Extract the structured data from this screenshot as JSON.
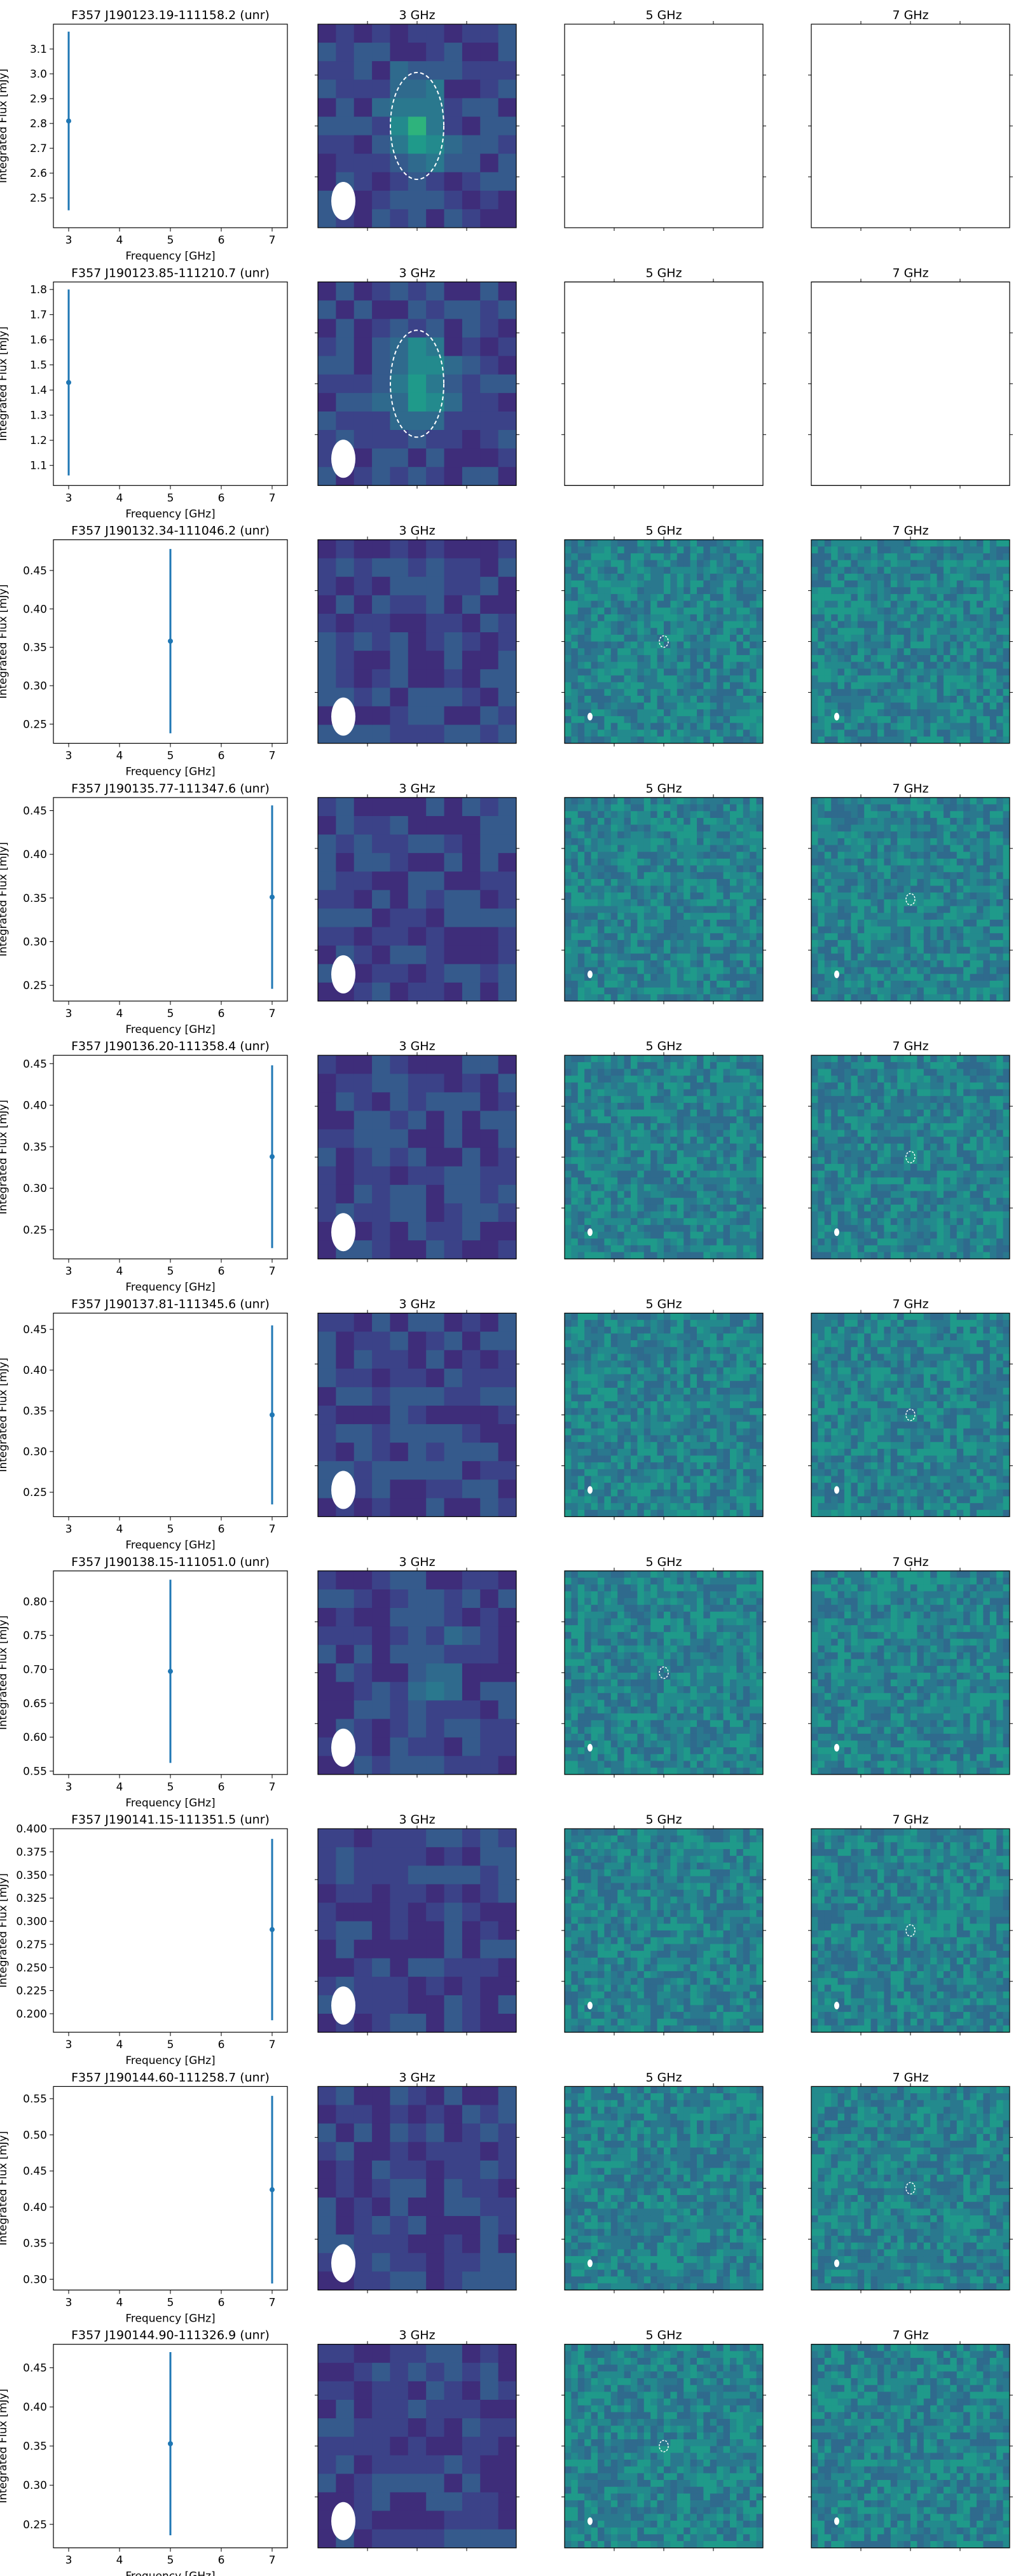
{
  "figure": {
    "panel_titles": [
      "3 GHz",
      "5 GHz",
      "7 GHz"
    ],
    "colors": {
      "series": "#1f77b4",
      "map_low": "#3b1a6b",
      "map_mid": "#2a788e",
      "map_high": "#44bf70"
    },
    "colormap": "viridis"
  },
  "chart_data": [
    {
      "type": "scatter",
      "title": "F357 J190123.19-111158.2 (unr)",
      "xlabel": "Frequency [GHz]",
      "ylabel": "Integrated Flux [mJy]",
      "xlim": [
        2.7,
        7.3
      ],
      "ylim": [
        2.38,
        3.2
      ],
      "xticks": [
        3,
        4,
        5,
        6,
        7
      ],
      "yticks": [
        2.5,
        2.6,
        2.7,
        2.8,
        2.9,
        3.0,
        3.1
      ],
      "points": [
        {
          "x": 3,
          "y": 2.81,
          "yerr_low": 0.36,
          "yerr_high": 0.36
        }
      ],
      "images": {
        "3 GHz": {
          "present": true,
          "source": "bright",
          "aperture": true
        },
        "5 GHz": {
          "present": false
        },
        "7 GHz": {
          "present": false
        }
      }
    },
    {
      "type": "scatter",
      "title": "F357 J190123.85-111210.7 (unr)",
      "xlabel": "Frequency [GHz]",
      "ylabel": "Integrated Flux [mJy]",
      "xlim": [
        2.7,
        7.3
      ],
      "ylim": [
        1.02,
        1.83
      ],
      "xticks": [
        3,
        4,
        5,
        6,
        7
      ],
      "yticks": [
        1.1,
        1.2,
        1.3,
        1.4,
        1.5,
        1.6,
        1.7,
        1.8
      ],
      "points": [
        {
          "x": 3,
          "y": 1.43,
          "yerr_low": 0.37,
          "yerr_high": 0.37
        }
      ],
      "images": {
        "3 GHz": {
          "present": true,
          "source": "bright",
          "aperture": true
        },
        "5 GHz": {
          "present": false
        },
        "7 GHz": {
          "present": false
        }
      }
    },
    {
      "type": "scatter",
      "title": "F357 J190132.34-111046.2 (unr)",
      "xlabel": "Frequency [GHz]",
      "ylabel": "Integrated Flux [mJy]",
      "xlim": [
        2.7,
        7.3
      ],
      "ylim": [
        0.225,
        0.49
      ],
      "xticks": [
        3,
        4,
        5,
        6,
        7
      ],
      "yticks": [
        0.25,
        0.3,
        0.35,
        0.4,
        0.45
      ],
      "points": [
        {
          "x": 5,
          "y": 0.358,
          "yerr_low": 0.12,
          "yerr_high": 0.12
        }
      ],
      "images": {
        "3 GHz": {
          "present": true,
          "source": "none",
          "aperture": false
        },
        "5 GHz": {
          "present": true,
          "source": "faint",
          "aperture": true
        },
        "7 GHz": {
          "present": true,
          "source": "none",
          "aperture": false
        }
      }
    },
    {
      "type": "scatter",
      "title": "F357 J190135.77-111347.6 (unr)",
      "xlabel": "Frequency [GHz]",
      "ylabel": "Integrated Flux [mJy]",
      "xlim": [
        2.7,
        7.3
      ],
      "ylim": [
        0.232,
        0.465
      ],
      "xticks": [
        3,
        4,
        5,
        6,
        7
      ],
      "yticks": [
        0.25,
        0.3,
        0.35,
        0.4,
        0.45
      ],
      "points": [
        {
          "x": 7,
          "y": 0.351,
          "yerr_low": 0.105,
          "yerr_high": 0.105
        }
      ],
      "images": {
        "3 GHz": {
          "present": true,
          "source": "none",
          "aperture": false
        },
        "5 GHz": {
          "present": true,
          "source": "none",
          "aperture": false
        },
        "7 GHz": {
          "present": true,
          "source": "faint",
          "aperture": true
        }
      }
    },
    {
      "type": "scatter",
      "title": "F357 J190136.20-111358.4 (unr)",
      "xlabel": "Frequency [GHz]",
      "ylabel": "Integrated Flux [mJy]",
      "xlim": [
        2.7,
        7.3
      ],
      "ylim": [
        0.215,
        0.46
      ],
      "xticks": [
        3,
        4,
        5,
        6,
        7
      ],
      "yticks": [
        0.25,
        0.3,
        0.35,
        0.4,
        0.45
      ],
      "points": [
        {
          "x": 7,
          "y": 0.338,
          "yerr_low": 0.11,
          "yerr_high": 0.11
        }
      ],
      "images": {
        "3 GHz": {
          "present": true,
          "source": "none",
          "aperture": false
        },
        "5 GHz": {
          "present": true,
          "source": "none",
          "aperture": false
        },
        "7 GHz": {
          "present": true,
          "source": "faint",
          "aperture": true
        }
      }
    },
    {
      "type": "scatter",
      "title": "F357 J190137.81-111345.6 (unr)",
      "xlabel": "Frequency [GHz]",
      "ylabel": "Integrated Flux [mJy]",
      "xlim": [
        2.7,
        7.3
      ],
      "ylim": [
        0.22,
        0.47
      ],
      "xticks": [
        3,
        4,
        5,
        6,
        7
      ],
      "yticks": [
        0.25,
        0.3,
        0.35,
        0.4,
        0.45
      ],
      "points": [
        {
          "x": 7,
          "y": 0.345,
          "yerr_low": 0.11,
          "yerr_high": 0.11
        }
      ],
      "images": {
        "3 GHz": {
          "present": true,
          "source": "none",
          "aperture": false
        },
        "5 GHz": {
          "present": true,
          "source": "none",
          "aperture": false
        },
        "7 GHz": {
          "present": true,
          "source": "faint",
          "aperture": true
        }
      }
    },
    {
      "type": "scatter",
      "title": "F357 J190138.15-111051.0 (unr)",
      "xlabel": "Frequency [GHz]",
      "ylabel": "Integrated Flux [mJy]",
      "xlim": [
        2.7,
        7.3
      ],
      "ylim": [
        0.545,
        0.845
      ],
      "xticks": [
        3,
        4,
        5,
        6,
        7
      ],
      "yticks": [
        0.55,
        0.6,
        0.65,
        0.7,
        0.75,
        0.8
      ],
      "points": [
        {
          "x": 5,
          "y": 0.697,
          "yerr_low": 0.135,
          "yerr_high": 0.135
        }
      ],
      "images": {
        "3 GHz": {
          "present": true,
          "source": "faint",
          "aperture": false
        },
        "5 GHz": {
          "present": true,
          "source": "faint",
          "aperture": true
        },
        "7 GHz": {
          "present": true,
          "source": "none",
          "aperture": false
        }
      }
    },
    {
      "type": "scatter",
      "title": "F357 J190141.15-111351.5 (unr)",
      "xlabel": "Frequency [GHz]",
      "ylabel": "Integrated Flux [mJy]",
      "xlim": [
        2.7,
        7.3
      ],
      "ylim": [
        0.18,
        0.4
      ],
      "xticks": [
        3,
        4,
        5,
        6,
        7
      ],
      "yticks": [
        0.2,
        0.225,
        0.25,
        0.275,
        0.3,
        0.325,
        0.35,
        0.375,
        0.4
      ],
      "points": [
        {
          "x": 7,
          "y": 0.291,
          "yerr_low": 0.098,
          "yerr_high": 0.098
        }
      ],
      "images": {
        "3 GHz": {
          "present": true,
          "source": "none",
          "aperture": false
        },
        "5 GHz": {
          "present": true,
          "source": "none",
          "aperture": false
        },
        "7 GHz": {
          "present": true,
          "source": "faint",
          "aperture": true
        }
      }
    },
    {
      "type": "scatter",
      "title": "F357 J190144.60-111258.7 (unr)",
      "xlabel": "Frequency [GHz]",
      "ylabel": "Integrated Flux [mJy]",
      "xlim": [
        2.7,
        7.3
      ],
      "ylim": [
        0.285,
        0.567
      ],
      "xticks": [
        3,
        4,
        5,
        6,
        7
      ],
      "yticks": [
        0.3,
        0.35,
        0.4,
        0.45,
        0.5,
        0.55
      ],
      "points": [
        {
          "x": 7,
          "y": 0.424,
          "yerr_low": 0.13,
          "yerr_high": 0.13
        }
      ],
      "images": {
        "3 GHz": {
          "present": true,
          "source": "none",
          "aperture": false
        },
        "5 GHz": {
          "present": true,
          "source": "none",
          "aperture": false
        },
        "7 GHz": {
          "present": true,
          "source": "faint",
          "aperture": true
        }
      }
    },
    {
      "type": "scatter",
      "title": "F357 J190144.90-111326.9 (unr)",
      "xlabel": "Frequency [GHz]",
      "ylabel": "Integrated Flux [mJy]",
      "xlim": [
        2.7,
        7.3
      ],
      "ylim": [
        0.22,
        0.48
      ],
      "xticks": [
        3,
        4,
        5,
        6,
        7
      ],
      "yticks": [
        0.25,
        0.3,
        0.35,
        0.4,
        0.45
      ],
      "points": [
        {
          "x": 5,
          "y": 0.353,
          "yerr_low": 0.117,
          "yerr_high": 0.117
        }
      ],
      "images": {
        "3 GHz": {
          "present": true,
          "source": "none",
          "aperture": false
        },
        "5 GHz": {
          "present": true,
          "source": "faint",
          "aperture": true
        },
        "7 GHz": {
          "present": true,
          "source": "none",
          "aperture": false
        }
      }
    }
  ]
}
